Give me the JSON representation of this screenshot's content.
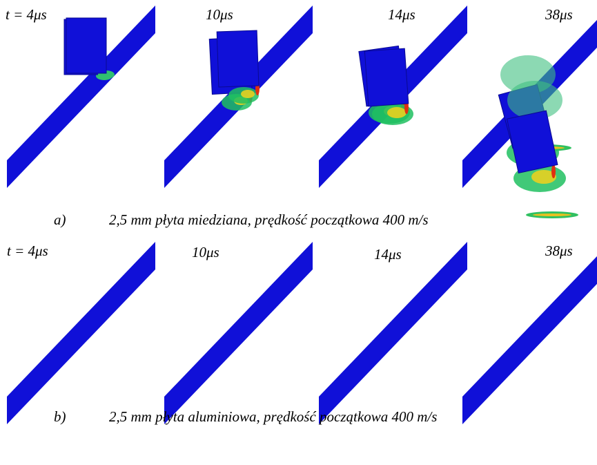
{
  "rows": [
    {
      "times": [
        "t = 4μs",
        "10μs",
        "14μs",
        "38μs"
      ],
      "label": "a)",
      "caption": "2,5 mm płyta miedziana, prędkość początkowa 400 m/s"
    },
    {
      "times": [
        "t = 4μs",
        "10μs",
        "14μs",
        "38μs"
      ],
      "label": "b)",
      "caption": "2,5 mm płyta aluminiowa, prędkość początkowa 400 m/s"
    }
  ]
}
